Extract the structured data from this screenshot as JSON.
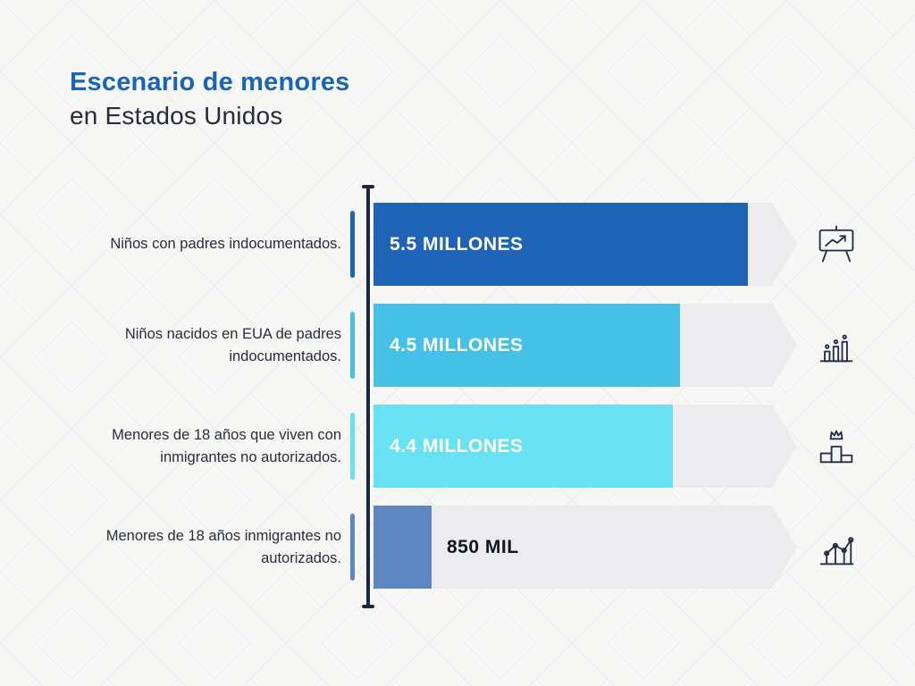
{
  "title": {
    "line1": "Escenario de menores",
    "line2": "en Estados Unidos"
  },
  "chart_data": {
    "type": "bar",
    "orientation": "horizontal",
    "title": "Escenario de menores en Estados Unidos",
    "categories": [
      "Niños con padres indocumentados.",
      "Niños nacidos en EUA de padres indocumentados.",
      "Menores de 18 años que viven con inmigrantes no autorizados.",
      "Menores de 18 años inmigrantes no autorizados."
    ],
    "values": [
      5.5,
      4.5,
      4.4,
      0.85
    ],
    "value_labels": [
      "5.5 MILLONES",
      "4.5 MILLONES",
      "4.4 MILLONES",
      "850 MIL"
    ],
    "unit": "millones de menores",
    "xlim": [
      0,
      5.5
    ],
    "bar_colors": [
      "#1e63b5",
      "#45c0e6",
      "#68e1f3",
      "#5d87c3"
    ],
    "track_color": "#ececee",
    "axis_color": "#1c2544",
    "icons": [
      "presentation-chart-icon",
      "column-chart-icon",
      "podium-winner-icon",
      "line-chart-icon"
    ],
    "legend": "none",
    "grid": false
  },
  "colors": {
    "background": "#f7f7f5",
    "title_accent": "#1a64b8",
    "title_dark": "#262c39",
    "label_text": "#272d3a",
    "value_text_light": "#ffffff",
    "value_text_dark": "#10151f"
  }
}
